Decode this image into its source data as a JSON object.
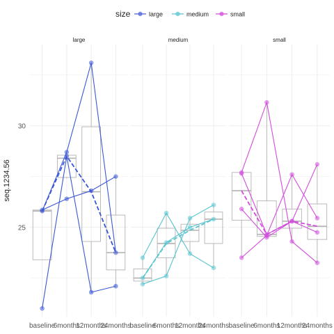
{
  "chart_data": {
    "type": "line",
    "facet_titles": [
      "large",
      "medium",
      "small"
    ],
    "x_categories": [
      "baseline",
      "6months",
      "12months",
      "24months"
    ],
    "ylabel": "seq.1234.56",
    "y_ticks": [
      25,
      30
    ],
    "ylim": [
      20.6,
      34.0
    ],
    "grid": true,
    "legend": {
      "title": "size",
      "position": "top",
      "entries": [
        {
          "label": "large",
          "color": "#4a63d8"
        },
        {
          "label": "medium",
          "color": "#57c5cf"
        },
        {
          "label": "small",
          "color": "#d24bdd"
        }
      ]
    },
    "box_color": "#b3b3b3",
    "panels": [
      {
        "facet": "large",
        "color": "#3a56d6",
        "boxes": [
          {
            "lower": 23.4,
            "q1": 23.4,
            "median": 25.8,
            "q3": 25.85,
            "upper": 25.85
          },
          {
            "lower": 27.4,
            "q1": 27.45,
            "median": 28.4,
            "q3": 28.55,
            "upper": 28.7
          },
          {
            "lower": 21.8,
            "q1": 24.3,
            "median": 26.75,
            "q3": 29.95,
            "upper": 33.1
          },
          {
            "lower": 22.1,
            "q1": 22.9,
            "median": 23.75,
            "q3": 25.6,
            "upper": 27.5
          }
        ],
        "subjects": [
          [
            25.8,
            28.7,
            33.1,
            23.75
          ],
          [
            21.0,
            28.5,
            21.8,
            22.1
          ],
          [
            25.85,
            26.4,
            26.8,
            27.5
          ]
        ],
        "mean": [
          25.8,
          28.5,
          26.75,
          23.75
        ]
      },
      {
        "facet": "medium",
        "color": "#57c5cf",
        "boxes": [
          {
            "lower": 22.2,
            "q1": 22.35,
            "median": 22.5,
            "q3": 22.95,
            "upper": 23.5
          },
          {
            "lower": 22.6,
            "q1": 23.5,
            "median": 24.2,
            "q3": 24.95,
            "upper": 25.7
          },
          {
            "lower": 23.7,
            "q1": 24.3,
            "median": 24.85,
            "q3": 25.15,
            "upper": 25.45
          },
          {
            "lower": 23.0,
            "q1": 24.2,
            "median": 25.4,
            "q3": 25.75,
            "upper": 26.1
          }
        ],
        "subjects": [
          [
            23.5,
            25.7,
            23.7,
            23.0
          ],
          [
            22.2,
            22.6,
            25.45,
            26.1
          ],
          [
            22.5,
            24.25,
            25.0,
            25.4
          ]
        ],
        "mean": [
          22.5,
          24.2,
          24.85,
          25.4
        ]
      },
      {
        "facet": "small",
        "color": "#d24bdd",
        "boxes": [
          {
            "lower": 23.5,
            "q1": 25.35,
            "median": 26.8,
            "q3": 27.7,
            "upper": 27.7
          },
          {
            "lower": 24.5,
            "q1": 24.55,
            "median": 24.65,
            "q3": 26.3,
            "upper": 31.15
          },
          {
            "lower": 24.3,
            "q1": 24.95,
            "median": 25.3,
            "q3": 25.9,
            "upper": 27.6
          },
          {
            "lower": 23.25,
            "q1": 24.4,
            "median": 25.05,
            "q3": 26.15,
            "upper": 28.1
          }
        ],
        "subjects": [
          [
            27.7,
            31.15,
            24.3,
            23.25
          ],
          [
            25.9,
            24.5,
            25.3,
            28.1
          ],
          [
            23.5,
            24.6,
            27.6,
            25.45
          ],
          [
            27.65,
            24.65,
            25.3,
            24.75
          ]
        ],
        "mean": [
          26.8,
          24.65,
          25.3,
          25.05
        ]
      }
    ]
  }
}
